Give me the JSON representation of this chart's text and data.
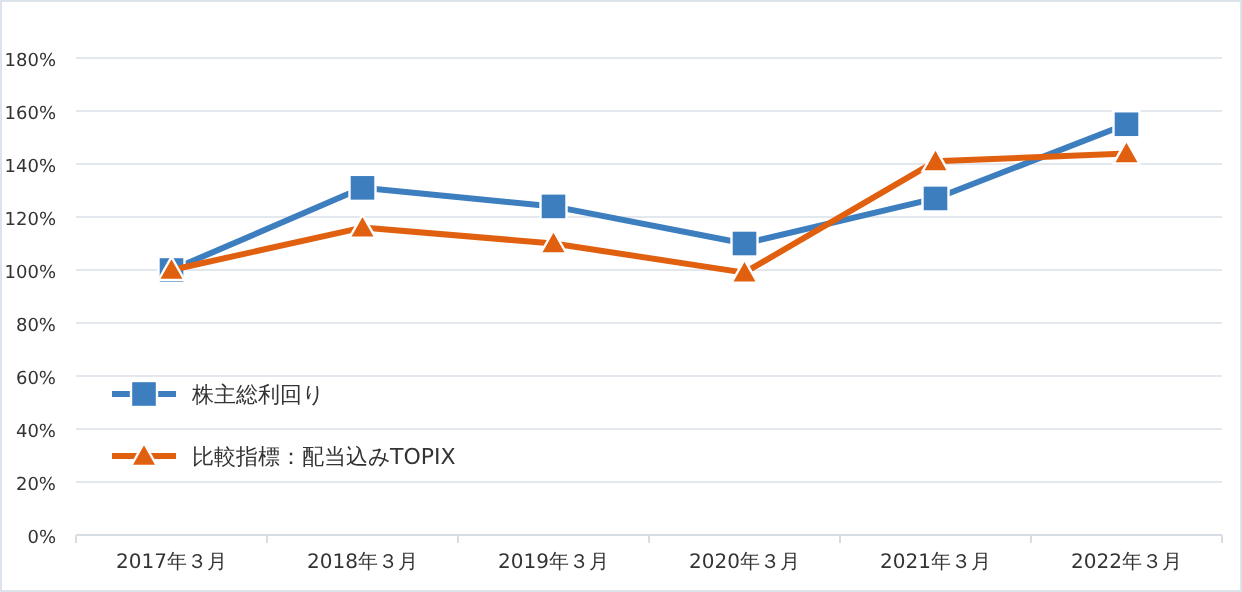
{
  "chart_data": {
    "type": "line",
    "categories": [
      "2017年３月",
      "2018年３月",
      "2019年３月",
      "2020年３月",
      "2021年３月",
      "2022年３月"
    ],
    "series": [
      {
        "name": "株主総利回り",
        "color": "#3d7ebf",
        "marker": "square",
        "values": [
          100,
          131,
          124,
          110,
          127,
          155
        ]
      },
      {
        "name": "比較指標：配当込みTOPIX",
        "color": "#e0600f",
        "marker": "triangle",
        "values": [
          100,
          116,
          110,
          99,
          141,
          144
        ]
      }
    ],
    "ylim": [
      0,
      180
    ],
    "yticks": [
      {
        "value": 0,
        "label": "0%"
      },
      {
        "value": 20,
        "label": "20%"
      },
      {
        "value": 40,
        "label": "40%"
      },
      {
        "value": 60,
        "label": "60%"
      },
      {
        "value": 80,
        "label": "80%"
      },
      {
        "value": 100,
        "label": "100%"
      },
      {
        "value": 120,
        "label": "120%"
      },
      {
        "value": 140,
        "label": "140%"
      },
      {
        "value": 160,
        "label": "160%"
      },
      {
        "value": 180,
        "label": "180%"
      }
    ],
    "grid": "y",
    "legend": "left",
    "line_style": "solid"
  }
}
